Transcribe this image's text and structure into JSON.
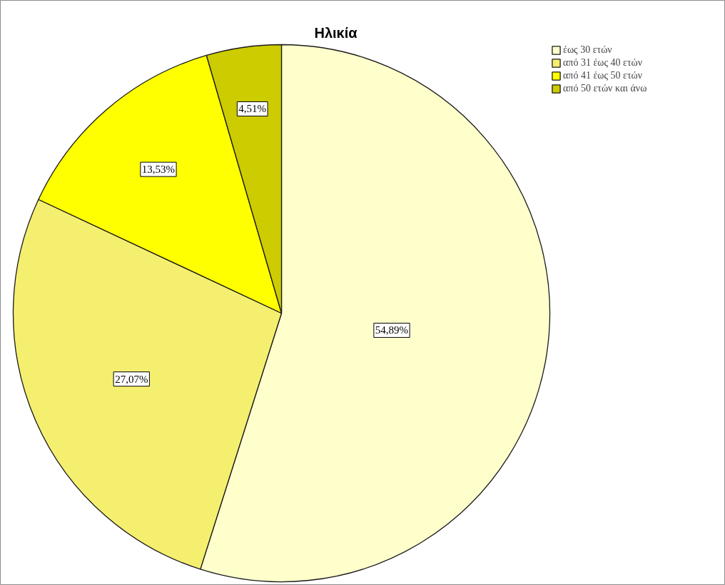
{
  "chart_data": {
    "type": "pie",
    "title": "Ηλικία",
    "categories": [
      "έως 30 ετών",
      "από 31 έως 40 ετών",
      "από 41 έως 50 ετών",
      "από 50 ετών και άνω"
    ],
    "values": [
      54.89,
      27.07,
      13.53,
      4.51
    ],
    "colors": [
      "#ffffcc",
      "#f5ef70",
      "#ffff00",
      "#cccc00"
    ],
    "value_labels": [
      "54,89%",
      "27,07%",
      "13,53%",
      "4,51%"
    ],
    "legend": "top right"
  }
}
